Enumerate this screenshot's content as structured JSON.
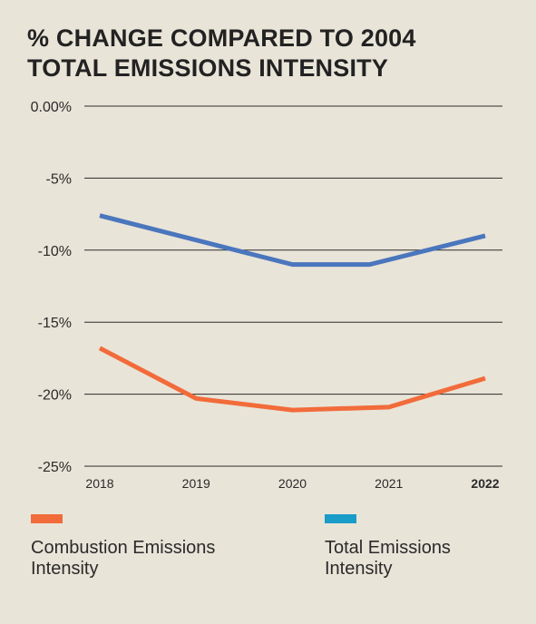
{
  "chart_data": {
    "type": "line",
    "title": [
      "% CHANGE COMPARED TO 2004",
      "TOTAL EMISSIONS INTENSITY"
    ],
    "categories": [
      "2018",
      "2019",
      "2020",
      "2021",
      "2022"
    ],
    "y_ticks": [
      "0.00%",
      "-5%",
      "-10%",
      "-15%",
      "-20%",
      "-25%"
    ],
    "ylim": [
      -25,
      0
    ],
    "bold_category": "2022",
    "series": [
      {
        "name": "Combustion Emissions Intensity",
        "color": "#f26b3a",
        "x": [
          2018,
          2019,
          2020,
          2021,
          2022
        ],
        "values": [
          -16.8,
          -20.3,
          -21.1,
          -20.9,
          -18.9
        ]
      },
      {
        "name": "Total Emissions Intensity",
        "color": "#4a76bd",
        "x": [
          2018,
          2019,
          2020,
          2020.8,
          2022
        ],
        "values": [
          -7.6,
          -9.3,
          -11.0,
          -11.0,
          -9.0
        ]
      }
    ],
    "legend": {
      "position": "bottom",
      "items": [
        {
          "label_lines": [
            "Combustion Emissions",
            "Intensity"
          ],
          "color": "#f26b3a"
        },
        {
          "label_lines": [
            "Total Emissions",
            "Intensity"
          ],
          "color": "#1a9cc9"
        }
      ]
    },
    "grid": true
  }
}
